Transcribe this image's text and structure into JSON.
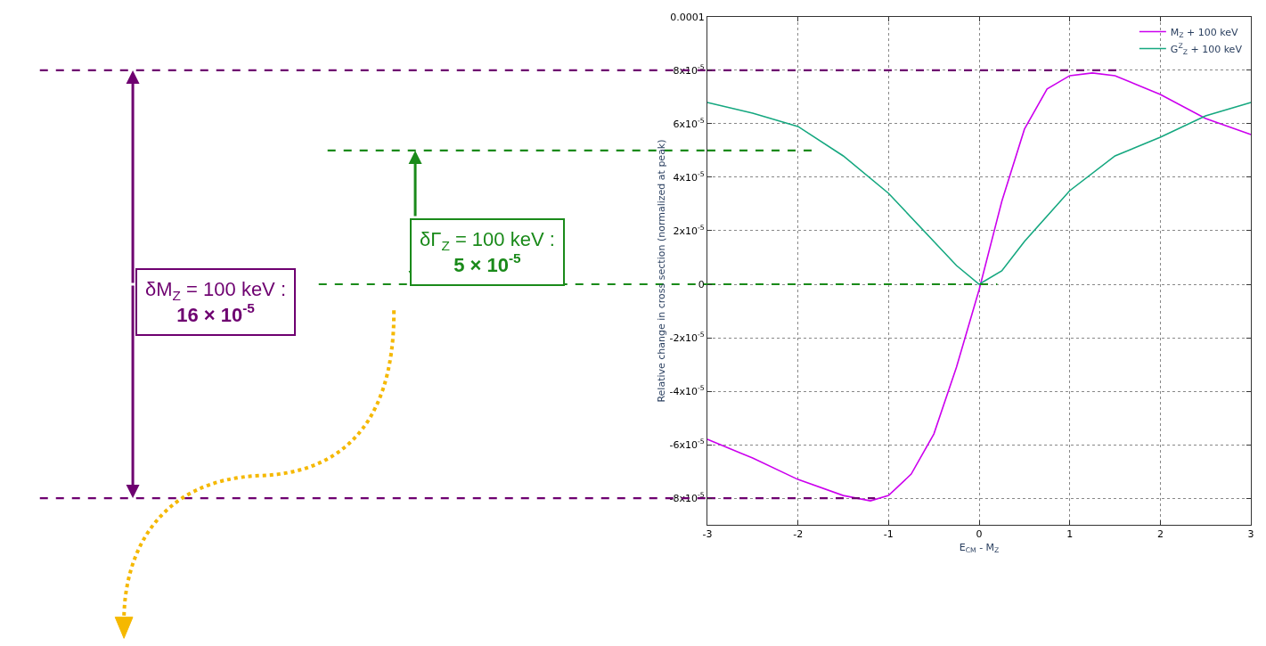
{
  "chart_data": {
    "type": "line",
    "xlabel": "E$_{CM}$ - M$_{Z}$",
    "ylabel": "Relative change in cross section (normalized at peak)",
    "x": [
      -3,
      -2.5,
      -2,
      -1.5,
      -1.2,
      -1,
      -0.75,
      -0.5,
      -0.25,
      0,
      0.25,
      0.5,
      0.75,
      1,
      1.25,
      1.5,
      2,
      2.5,
      3
    ],
    "series": [
      {
        "name": "M$_{Z}$ + 100 keV",
        "color": "#cc00ee",
        "values": [
          -5.8e-05,
          -6.5e-05,
          -7.3e-05,
          -7.9e-05,
          -8.1e-05,
          -7.9e-05,
          -7.1e-05,
          -5.6e-05,
          -3.1e-05,
          -2e-06,
          3.1e-05,
          5.8e-05,
          7.3e-05,
          7.8e-05,
          7.9e-05,
          7.8e-05,
          7.1e-05,
          6.2e-05,
          5.6e-05
        ]
      },
      {
        "name": "G$^{Z}$$_{Z}$ + 100 keV",
        "color": "#16a880",
        "x": [
          -3,
          -2.5,
          -2,
          -1.5,
          -1,
          -0.5,
          -0.25,
          0,
          0.25,
          0.5,
          1,
          1.5,
          2,
          2.5,
          3
        ],
        "values": [
          6.8e-05,
          6.4e-05,
          5.9e-05,
          4.8e-05,
          3.4e-05,
          1.6e-05,
          7e-06,
          0,
          5e-06,
          1.6e-05,
          3.5e-05,
          4.8e-05,
          5.5e-05,
          6.3e-05,
          6.8e-05
        ]
      }
    ],
    "xlim": [
      -3,
      3
    ],
    "xticks": [
      -3,
      -2,
      -1,
      0,
      1,
      2,
      3
    ],
    "ylim": [
      -9e-05,
      0.0001
    ],
    "yticks": [
      {
        "value": 0.0001,
        "label": "0.0001"
      },
      {
        "value": 8e-05,
        "label": "8x10$^{-5}$"
      },
      {
        "value": 6e-05,
        "label": "6x10$^{-5}$"
      },
      {
        "value": 4e-05,
        "label": "4x10$^{-5}$"
      },
      {
        "value": 2e-05,
        "label": "2x10$^{-5}$"
      },
      0,
      {
        "value": -2e-05,
        "label": "-2x10$^{-5}$"
      },
      {
        "value": -4e-05,
        "label": "-4x10$^{-5}$"
      },
      {
        "value": -6e-05,
        "label": "-6x10$^{-5}$"
      },
      {
        "value": -8e-05,
        "label": "-8x10$^{-5}$"
      }
    ],
    "ref_lines": [
      {
        "axis": "y",
        "value": 8e-05,
        "color": "#6e0070",
        "line_style": "dashed"
      },
      {
        "axis": "y",
        "value": -8e-05,
        "color": "#6e0070",
        "line_style": "dashed"
      },
      {
        "axis": "y",
        "value": 5e-05,
        "color": "#1a8a1a",
        "line_style": "dashed"
      },
      {
        "axis": "y",
        "value": 0,
        "color": "#1a8a1a",
        "line_style": "dashed"
      }
    ],
    "annotations": [
      "δM$_{Z}$ = 100 keV :\n16 × 10$^{-5}$",
      "δΓ$_{Z}$ = 100 keV :\n5 × 10$^{-5}$"
    ],
    "grid": true,
    "legend": "top right",
    "line_style": "solid",
    "marker": "none"
  }
}
